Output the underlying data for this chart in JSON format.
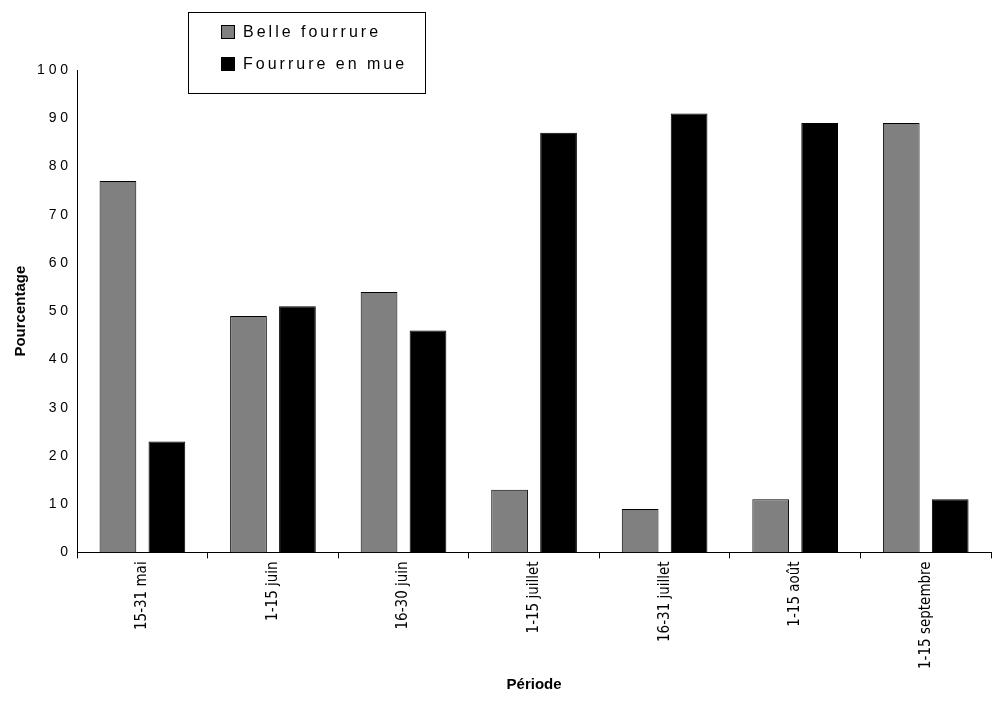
{
  "chart_data": {
    "type": "bar",
    "xlabel": "Période",
    "ylabel": "Pourcentage",
    "categories": [
      "15-31 mai",
      "1-15 juin",
      "16-30 juin",
      "1-15 juillet",
      "16-31 juillet",
      "1-15 août",
      "1-15 septembre"
    ],
    "series": [
      {
        "name": "Belle fourrure",
        "color": "#808080",
        "values": [
          77,
          49,
          54,
          13,
          9,
          11,
          89
        ]
      },
      {
        "name": "Fourrure en mue",
        "color": "#000000",
        "values": [
          23,
          51,
          46,
          87,
          91,
          89,
          11
        ]
      }
    ],
    "ylim": [
      0,
      100
    ],
    "yticks": [
      0,
      10,
      20,
      30,
      40,
      50,
      60,
      70,
      80,
      90,
      100
    ],
    "grid": false,
    "legend": "top left"
  }
}
